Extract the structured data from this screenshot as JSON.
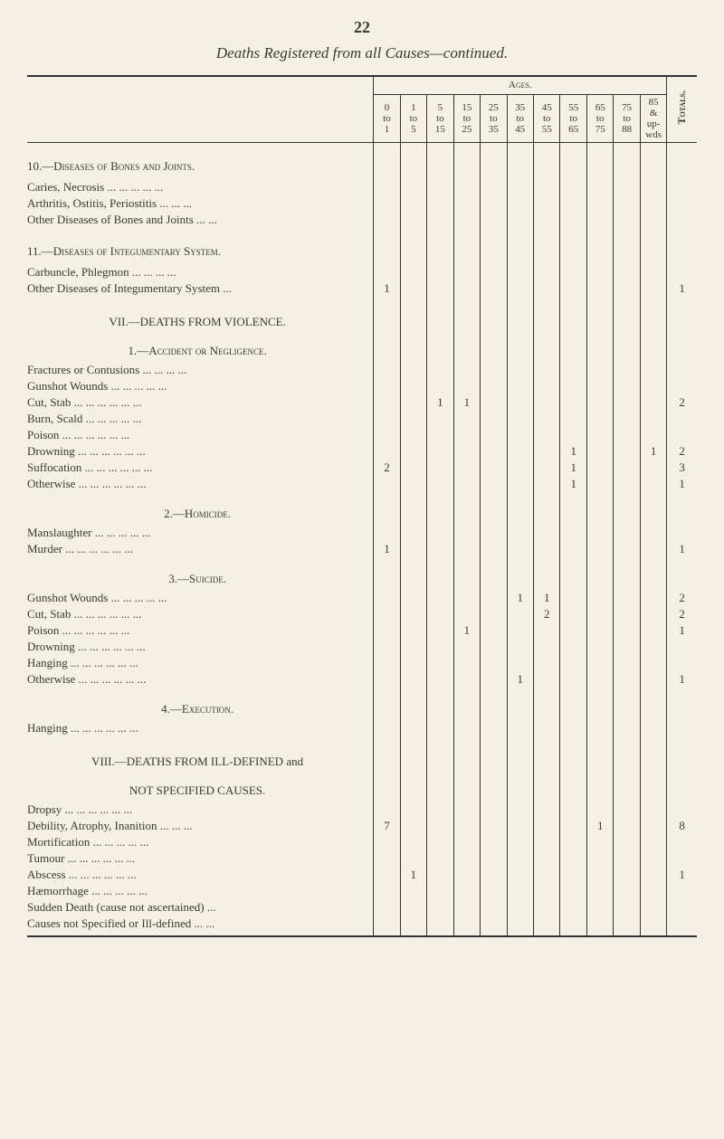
{
  "page_number": "22",
  "title": "Deaths Registered from all Causes—continued.",
  "header": {
    "ages_label": "Ages.",
    "totals_label": "Totals.",
    "ranges": [
      "0 to 1",
      "1 to 5",
      "5 to 15",
      "15 to 25",
      "25 to 35",
      "35 to 45",
      "45 to 55",
      "55 to 65",
      "65 to 75",
      "75 to 88",
      "85 & up-wds"
    ]
  },
  "sections": [
    {
      "type": "section",
      "label": "10.—Diseases of Bones and Joints.",
      "rows": [
        {
          "label": "Caries, Necrosis   ...   ...   ...   ...   ...",
          "cells": [
            "",
            "",
            "",
            "",
            "",
            "",
            "",
            "",
            "",
            "",
            ""
          ],
          "total": ""
        },
        {
          "label": "Arthritis, Ostitis, Periostitis   ...   ...   ...",
          "cells": [
            "",
            "",
            "",
            "",
            "",
            "",
            "",
            "",
            "",
            "",
            ""
          ],
          "total": ""
        },
        {
          "label": "Other Diseases of Bones and Joints   ...   ...",
          "cells": [
            "",
            "",
            "",
            "",
            "",
            "",
            "",
            "",
            "",
            "",
            ""
          ],
          "total": ""
        }
      ]
    },
    {
      "type": "section",
      "label": "11.—Diseases of Integumentary System.",
      "rows": [
        {
          "label": "Carbuncle, Phlegmon   ...   ...   ...   ...",
          "cells": [
            "",
            "",
            "",
            "",
            "",
            "",
            "",
            "",
            "",
            "",
            ""
          ],
          "total": ""
        },
        {
          "label": "Other Diseases of Integumentary System   ...",
          "cells": [
            "1",
            "",
            "",
            "",
            "",
            "",
            "",
            "",
            "",
            "",
            ""
          ],
          "total": "1"
        }
      ]
    },
    {
      "type": "main",
      "label": "VII.—DEATHS FROM VIOLENCE.",
      "sub": "1.—Accident or Negligence.",
      "rows": [
        {
          "label": "Fractures or Contusions ...   ...   ...   ...",
          "cells": [
            "",
            "",
            "",
            "",
            "",
            "",
            "",
            "",
            "",
            "",
            ""
          ],
          "total": ""
        },
        {
          "label": "Gunshot Wounds ...   ...   ...   ...   ...",
          "cells": [
            "",
            "",
            "",
            "",
            "",
            "",
            "",
            "",
            "",
            "",
            ""
          ],
          "total": ""
        },
        {
          "label": "Cut, Stab   ...   ...   ...   ...   ...   ...",
          "cells": [
            "",
            "",
            "1",
            "1",
            "",
            "",
            "",
            "",
            "",
            "",
            ""
          ],
          "total": "2"
        },
        {
          "label": "Burn, Scald   ...   ...   ...   ...   ...",
          "cells": [
            "",
            "",
            "",
            "",
            "",
            "",
            "",
            "",
            "",
            "",
            ""
          ],
          "total": ""
        },
        {
          "label": "Poison   ...   ...   ...   ...   ...   ...",
          "cells": [
            "",
            "",
            "",
            "",
            "",
            "",
            "",
            "",
            "",
            "",
            ""
          ],
          "total": ""
        },
        {
          "label": "Drowning   ...   ...   ...   ...   ...   ...",
          "cells": [
            "",
            "",
            "",
            "",
            "",
            "",
            "",
            "1",
            "",
            "",
            "1"
          ],
          "total": "2"
        },
        {
          "label": "Suffocation   ...   ...   ...   ...   ...   ...",
          "cells": [
            "2",
            "",
            "",
            "",
            "",
            "",
            "",
            "1",
            "",
            "",
            ""
          ],
          "total": "3"
        },
        {
          "label": "Otherwise   ...   ...   ...   ...   ...   ...",
          "cells": [
            "",
            "",
            "",
            "",
            "",
            "",
            "",
            "1",
            "",
            "",
            ""
          ],
          "total": "1"
        }
      ]
    },
    {
      "type": "sub",
      "label": "2.—Homicide.",
      "rows": [
        {
          "label": "Manslaughter   ...   ...   ...   ...   ...",
          "cells": [
            "",
            "",
            "",
            "",
            "",
            "",
            "",
            "",
            "",
            "",
            ""
          ],
          "total": ""
        },
        {
          "label": "Murder   ...   ...   ...   ...   ...   ...",
          "cells": [
            "1",
            "",
            "",
            "",
            "",
            "",
            "",
            "",
            "",
            "",
            ""
          ],
          "total": "1"
        }
      ]
    },
    {
      "type": "sub",
      "label": "3.—Suicide.",
      "rows": [
        {
          "label": "Gunshot Wounds ...   ...   ...   ...   ...",
          "cells": [
            "",
            "",
            "",
            "",
            "",
            "1",
            "1",
            "",
            "",
            "",
            ""
          ],
          "total": "2"
        },
        {
          "label": "Cut, Stab   ...   ...   ...   ...   ...   ...",
          "cells": [
            "",
            "",
            "",
            "",
            "",
            "",
            "2",
            "",
            "",
            "",
            ""
          ],
          "total": "2"
        },
        {
          "label": "Poison   ...   ...   ...   ...   ...   ...",
          "cells": [
            "",
            "",
            "",
            "1",
            "",
            "",
            "",
            "",
            "",
            "",
            ""
          ],
          "total": "1"
        },
        {
          "label": "Drowning   ...   ...   ...   ...   ...   ...",
          "cells": [
            "",
            "",
            "",
            "",
            "",
            "",
            "",
            "",
            "",
            "",
            ""
          ],
          "total": ""
        },
        {
          "label": "Hanging   ...   ...   ...   ...   ...   ...",
          "cells": [
            "",
            "",
            "",
            "",
            "",
            "",
            "",
            "",
            "",
            "",
            ""
          ],
          "total": ""
        },
        {
          "label": "Otherwise   ...   ...   ...   ...   ...   ...",
          "cells": [
            "",
            "",
            "",
            "",
            "",
            "1",
            "",
            "",
            "",
            "",
            ""
          ],
          "total": "1"
        }
      ]
    },
    {
      "type": "sub",
      "label": "4.—Execution.",
      "rows": [
        {
          "label": "Hanging   ...   ...   ...   ...   ...   ...",
          "cells": [
            "",
            "",
            "",
            "",
            "",
            "",
            "",
            "",
            "",
            "",
            ""
          ],
          "total": ""
        }
      ]
    },
    {
      "type": "main",
      "label": "VIII.—DEATHS FROM ILL-DEFINED and",
      "sub": "NOT SPECIFIED CAUSES.",
      "rows": [
        {
          "label": "Dropsy   ...   ...   ...   ...   ...   ...",
          "cells": [
            "",
            "",
            "",
            "",
            "",
            "",
            "",
            "",
            "",
            "",
            ""
          ],
          "total": ""
        },
        {
          "label": "Debility, Atrophy, Inanition   ...   ...   ...",
          "cells": [
            "7",
            "",
            "",
            "",
            "",
            "",
            "",
            "",
            "1",
            "",
            ""
          ],
          "total": "8"
        },
        {
          "label": "Mortification   ...   ...   ...   ...   ...",
          "cells": [
            "",
            "",
            "",
            "",
            "",
            "",
            "",
            "",
            "",
            "",
            ""
          ],
          "total": ""
        },
        {
          "label": "Tumour   ...   ...   ...   ...   ...   ...",
          "cells": [
            "",
            "",
            "",
            "",
            "",
            "",
            "",
            "",
            "",
            "",
            ""
          ],
          "total": ""
        },
        {
          "label": "Abscess   ...   ...   ...   ...   ...   ...",
          "cells": [
            "",
            "1",
            "",
            "",
            "",
            "",
            "",
            "",
            "",
            "",
            ""
          ],
          "total": "1"
        },
        {
          "label": "Hæmorrhage   ...   ...   ...   ...   ...",
          "cells": [
            "",
            "",
            "",
            "",
            "",
            "",
            "",
            "",
            "",
            "",
            ""
          ],
          "total": ""
        },
        {
          "label": "Sudden Death (cause not ascertained)   ...",
          "cells": [
            "",
            "",
            "",
            "",
            "",
            "",
            "",
            "",
            "",
            "",
            ""
          ],
          "total": ""
        },
        {
          "label": "Causes not Specified or Ill-defined   ...   ...",
          "cells": [
            "",
            "",
            "",
            "",
            "",
            "",
            "",
            "",
            "",
            "",
            ""
          ],
          "total": ""
        }
      ]
    }
  ]
}
